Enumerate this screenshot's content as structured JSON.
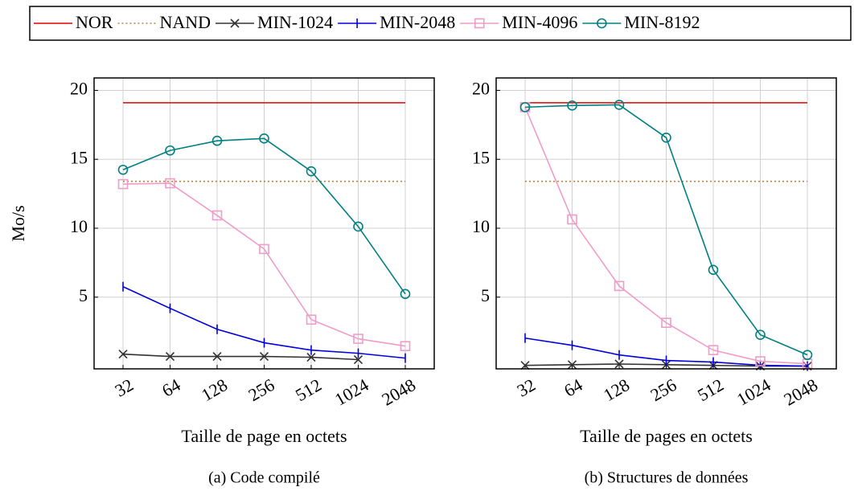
{
  "chart_data": [
    {
      "type": "line",
      "ylabel": "Mo/s",
      "xlabel": "Taille de page en octets",
      "caption": "(a) Code compilé",
      "categories": [
        "32",
        "64",
        "128",
        "256",
        "512",
        "1024",
        "2048"
      ],
      "ylim": [
        -0.2,
        20.9
      ],
      "yticks": [
        5,
        10,
        15,
        20
      ],
      "grid": true,
      "series": [
        {
          "name": "NOR",
          "color": "#e00000",
          "dash": "solid",
          "marker": "none",
          "values": [
            19.1,
            19.1,
            19.1,
            19.1,
            19.1,
            19.1,
            19.1
          ]
        },
        {
          "name": "NAND",
          "color": "#c08040",
          "dash": "dotted",
          "marker": "none",
          "values": [
            13.4,
            13.4,
            13.4,
            13.4,
            13.4,
            13.4,
            13.4
          ]
        },
        {
          "name": "MIN-1024",
          "color": "#333333",
          "dash": "solid",
          "marker": "x",
          "values": [
            0.87,
            0.7,
            0.7,
            0.7,
            0.64,
            0.47,
            null
          ]
        },
        {
          "name": "MIN-2048",
          "color": "#0000dd",
          "dash": "solid",
          "marker": "bar",
          "values": [
            5.76,
            4.19,
            2.67,
            1.69,
            1.16,
            0.93,
            0.58
          ]
        },
        {
          "name": "MIN-4096",
          "color": "#f09bc8",
          "dash": "solid",
          "marker": "square",
          "values": [
            13.2,
            13.26,
            10.93,
            8.49,
            3.37,
            1.98,
            1.45
          ]
        },
        {
          "name": "MIN-8192",
          "color": "#008080",
          "dash": "solid",
          "marker": "circle",
          "values": [
            14.24,
            15.64,
            16.34,
            16.51,
            14.13,
            10.12,
            5.23
          ]
        }
      ]
    },
    {
      "type": "line",
      "xlabel": "Taille de pages en octets",
      "caption": "(b) Structures de données",
      "categories": [
        "32",
        "64",
        "128",
        "256",
        "512",
        "1024",
        "2048"
      ],
      "ylim": [
        -0.2,
        20.9
      ],
      "yticks": [
        5,
        10,
        15,
        20
      ],
      "grid": true,
      "series": [
        {
          "color": "#e00000",
          "dash": "solid",
          "marker": "none",
          "values": [
            19.1,
            19.1,
            19.1,
            19.1,
            19.1,
            19.1,
            19.1
          ]
        },
        {
          "color": "#c08040",
          "dash": "dotted",
          "marker": "none",
          "values": [
            13.4,
            13.4,
            13.4,
            13.4,
            13.4,
            13.4,
            13.4
          ]
        },
        {
          "color": "#333333",
          "dash": "solid",
          "marker": "x",
          "values": [
            0.05,
            0.1,
            0.15,
            0.1,
            0.05,
            0,
            0
          ]
        },
        {
          "color": "#0000dd",
          "dash": "solid",
          "marker": "bar",
          "values": [
            2.03,
            1.51,
            0.81,
            0.41,
            0.29,
            0.06,
            0
          ]
        },
        {
          "color": "#f09bc8",
          "dash": "solid",
          "marker": "square",
          "values": [
            18.78,
            10.64,
            5.81,
            3.14,
            1.16,
            0.35,
            0.17
          ]
        },
        {
          "color": "#008080",
          "dash": "solid",
          "marker": "circle",
          "values": [
            18.78,
            18.9,
            18.95,
            16.57,
            6.98,
            2.27,
            0.81
          ]
        }
      ]
    }
  ]
}
